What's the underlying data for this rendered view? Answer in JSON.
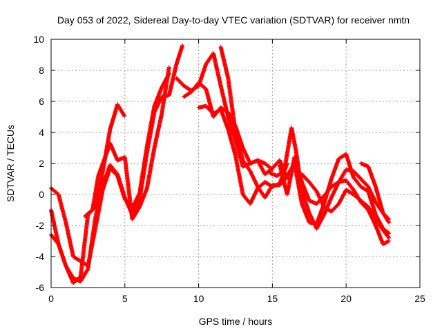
{
  "chart_data": {
    "type": "scatter",
    "title": "Day 053 of 2022, Sidereal Day-to-day VTEC variation (SDTVAR) for receiver nmtn",
    "xlabel": "GPS time / hours",
    "ylabel": "SDTVAR / TECUs",
    "xlim": [
      0,
      25
    ],
    "ylim": [
      -6,
      10
    ],
    "xticks": [
      0,
      5,
      10,
      15,
      20,
      25
    ],
    "yticks": [
      -6,
      -4,
      -2,
      0,
      2,
      4,
      6,
      8,
      10
    ],
    "grid": true,
    "marker": "plus",
    "color": "#ff0000",
    "series": [
      {
        "x": [
          0.0,
          0.5,
          1.0,
          1.5,
          2.0,
          2.5,
          3.0,
          3.5,
          4.0,
          4.5,
          5.0,
          5.5,
          6.0,
          6.5,
          7.0,
          7.5,
          8.0
        ],
        "y": [
          0.4,
          0.0,
          -1.8,
          -4.0,
          -4.3,
          -4.6,
          -2.2,
          0.3,
          1.7,
          1.2,
          -0.3,
          -0.9,
          0.1,
          3.1,
          5.7,
          6.9,
          7.8
        ]
      },
      {
        "x": [
          0.0,
          0.5,
          1.0,
          1.5,
          2.0,
          2.5,
          3.0,
          3.5,
          4.0,
          4.5,
          5.0,
          5.5,
          6.0,
          6.5,
          7.0,
          7.5,
          8.0,
          8.5,
          8.9
        ],
        "y": [
          -1.0,
          -3.2,
          -4.6,
          -5.4,
          -5.6,
          -4.8,
          -1.5,
          0.6,
          1.9,
          1.3,
          -0.2,
          -1.3,
          -0.3,
          2.7,
          5.3,
          6.3,
          6.4,
          8.4,
          9.6
        ]
      },
      {
        "x": [
          0.0,
          0.5,
          1.0,
          1.5,
          2.0,
          2.5,
          3.0,
          3.5,
          4.0,
          4.5,
          5.0,
          5.5,
          6.0,
          6.5,
          7.0,
          7.5,
          8.0
        ],
        "y": [
          -2.6,
          -3.2,
          -4.6,
          -5.7,
          -5.3,
          -1.3,
          -0.8,
          1.5,
          4.2,
          5.8,
          5.0,
          null,
          null,
          null,
          null,
          null,
          null
        ]
      },
      {
        "x": [
          2.3,
          2.8,
          3.2,
          3.7,
          4.0,
          4.5,
          5.0,
          5.5,
          6.0,
          6.5,
          7.0,
          7.5,
          8.0
        ],
        "y": [
          -1.4,
          -1.0,
          1.2,
          2.5,
          3.3,
          2.2,
          2.4,
          -1.6,
          -0.8,
          0.4,
          3.0,
          5.2,
          8.2
        ]
      },
      {
        "x": [
          8.5,
          9.0,
          9.5,
          10.0,
          10.5,
          11.0,
          11.5,
          12.0,
          12.5,
          13.0,
          13.5,
          14.0,
          14.5,
          15.0
        ],
        "y": [
          7.5,
          7.0,
          6.7,
          7.0,
          8.4,
          9.1,
          7.0,
          5.0,
          3.5,
          1.8,
          2.0,
          2.2,
          2.0,
          1.6
        ]
      },
      {
        "x": [
          9.0,
          9.5,
          10.0,
          10.5,
          11.0,
          11.5,
          12.0,
          12.5,
          13.0,
          13.5,
          14.0,
          14.5,
          15.0,
          15.5,
          16.0
        ],
        "y": [
          6.3,
          6.6,
          7.2,
          6.8,
          5.0,
          5.6,
          5.3,
          4.4,
          3.0,
          2.0,
          2.2,
          1.3,
          1.7,
          2.2,
          1.0
        ]
      },
      {
        "x": [
          10.0,
          10.5,
          11.0,
          11.5,
          12.0,
          12.5,
          13.0,
          13.5,
          14.0,
          14.5,
          15.0,
          15.5,
          16.0
        ],
        "y": [
          5.6,
          5.7,
          5.2,
          5.5,
          4.2,
          2.5,
          0.0,
          -0.6,
          0.4,
          0.8,
          0.5,
          0.7,
          2.0
        ]
      },
      {
        "x": [
          11.5,
          12.0,
          12.5,
          13.0,
          13.5,
          14.0,
          14.5,
          15.0,
          15.5,
          16.0,
          16.5,
          17.0,
          17.5,
          18.0,
          18.5,
          19.0,
          19.5,
          20.0,
          20.5,
          21.0,
          21.5,
          22.0,
          22.5,
          22.9
        ],
        "y": [
          9.5,
          7.5,
          4.0,
          2.2,
          1.5,
          0.5,
          -0.2,
          0.6,
          0.6,
          1.2,
          2.0,
          -0.6,
          -1.8,
          -1.9,
          -0.6,
          1.0,
          2.3,
          2.6,
          1.1,
          0.5,
          0.2,
          -1.3,
          -2.2,
          -2.5
        ]
      },
      {
        "x": [
          14.8,
          15.3,
          15.8,
          16.3,
          16.6,
          17.0,
          17.5,
          18.0,
          18.5,
          19.0,
          19.5,
          20.0,
          20.5,
          21.0,
          21.5,
          22.0,
          22.5,
          22.9
        ],
        "y": [
          1.4,
          1.2,
          1.5,
          4.3,
          2.8,
          0.2,
          -1.2,
          -2.2,
          -1.3,
          -0.2,
          0.8,
          1.6,
          1.5,
          1.0,
          0.5,
          -0.5,
          -1.2,
          -1.8
        ]
      },
      {
        "x": [
          15.5,
          16.0,
          16.5,
          17.0,
          17.5,
          18.0,
          18.5,
          19.0,
          19.5,
          20.0,
          20.5,
          21.0,
          21.5,
          22.0,
          22.5,
          22.9
        ],
        "y": [
          1.9,
          0.0,
          2.4,
          0.8,
          -0.4,
          -0.6,
          -0.1,
          0.5,
          0.8,
          0.9,
          0.3,
          -0.5,
          -1.0,
          -2.0,
          -3.2,
          -3.0
        ]
      },
      {
        "x": [
          17.0,
          17.5,
          18.0,
          18.5,
          19.0,
          19.5,
          20.0,
          20.5,
          21.0,
          21.5,
          22.0,
          22.5,
          22.9
        ],
        "y": [
          1.3,
          0.8,
          0.2,
          -0.8,
          -1.1,
          -0.6,
          0.3,
          0.0,
          -0.4,
          -0.8,
          -1.6,
          -2.3,
          -2.8
        ]
      },
      {
        "x": [
          21.0,
          21.5,
          22.0,
          22.5,
          22.9
        ],
        "y": [
          2.0,
          1.8,
          0.5,
          -1.2,
          -1.6
        ]
      }
    ]
  }
}
